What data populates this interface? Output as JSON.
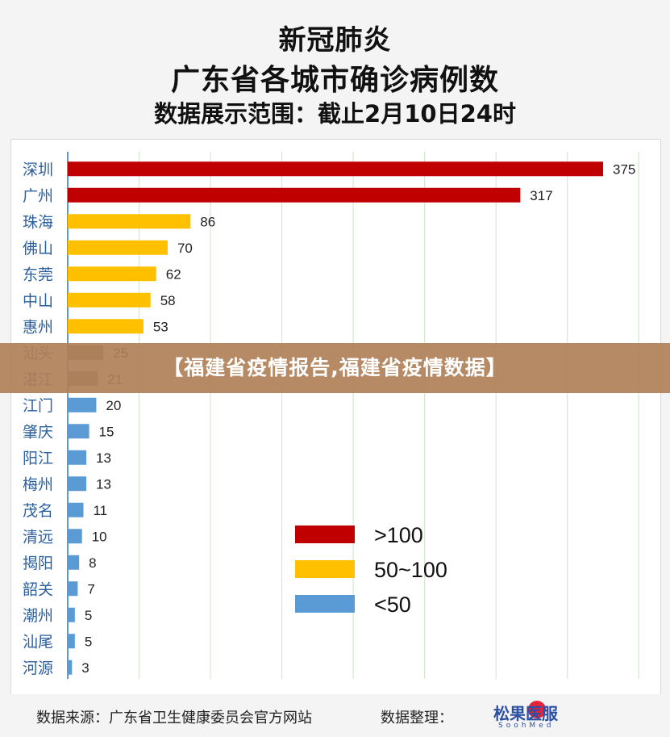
{
  "header": {
    "title1": "新冠肺炎",
    "title2": "广东省各城市确诊病例数",
    "title3": "数据展示范围：截止2月10日24时"
  },
  "banner": {
    "text": "【福建省疫情报告,福建省疫情数据】"
  },
  "footer": {
    "source": "数据来源：广东省卫生健康委员会官方网站",
    "organizer": "数据整理：",
    "logo_text": "松果医服",
    "logo_sub": "SoohMed"
  },
  "colors": {
    "high": "#c00000",
    "mid": "#ffc000",
    "low": "#5b9bd5",
    "gray": "#7f7f7f",
    "axis": "#5b9bd5",
    "grid": "#cde3c7"
  },
  "chart_data": {
    "type": "bar",
    "orientation": "horizontal",
    "categories": [
      "深圳",
      "广州",
      "珠海",
      "佛山",
      "东莞",
      "中山",
      "惠州",
      "汕头",
      "湛江",
      "江门",
      "肇庆",
      "阳江",
      "梅州",
      "茂名",
      "清远",
      "揭阳",
      "韶关",
      "潮州",
      "汕尾",
      "河源"
    ],
    "values": [
      375,
      317,
      86,
      70,
      62,
      58,
      53,
      25,
      21,
      20,
      15,
      13,
      13,
      11,
      10,
      8,
      7,
      5,
      5,
      3
    ],
    "data_labels": [
      "375",
      "317",
      "86",
      "70",
      "62",
      "58",
      "53",
      "25",
      "21",
      "20",
      "15",
      "13",
      "13",
      "11",
      "10",
      "8",
      "7",
      "5",
      "5",
      "3"
    ],
    "xlim": [
      0,
      400
    ],
    "grid": true,
    "legend_position": "bottom-right",
    "legend": [
      {
        "label": ">100",
        "color": "#c00000"
      },
      {
        "label": "50~100",
        "color": "#ffc000"
      },
      {
        "label": "<50",
        "color": "#5b9bd5"
      }
    ]
  }
}
